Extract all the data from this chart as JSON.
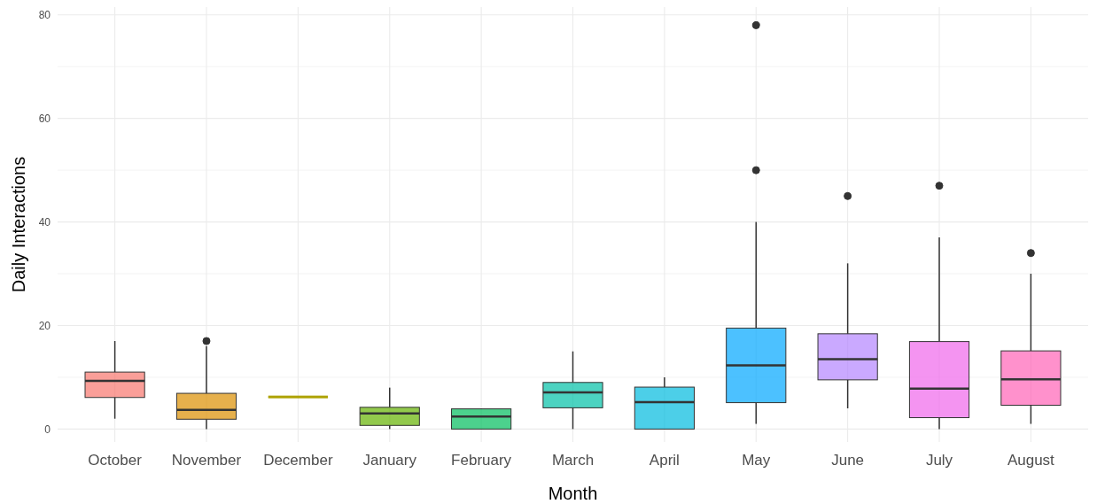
{
  "chart_data": {
    "type": "box",
    "xlabel": "Month",
    "ylabel": "Daily Interactions",
    "categories": [
      "October",
      "November",
      "December",
      "January",
      "February",
      "March",
      "April",
      "May",
      "June",
      "July",
      "August"
    ],
    "colors": [
      "#f8766d",
      "#db8e00",
      "#aea200",
      "#64b200",
      "#00bd5c",
      "#00c1a7",
      "#00bade",
      "#00a6ff",
      "#b385ff",
      "#ef67eb",
      "#ff63b6"
    ],
    "boxes": [
      {
        "low": 2,
        "q1": 6.1,
        "median": 9.3,
        "q3": 11,
        "high": 17
      },
      {
        "low": 0,
        "q1": 1.9,
        "median": 3.7,
        "q3": 6.9,
        "high": 16,
        "outliers": [
          17
        ]
      },
      {
        "low": 6.2,
        "q1": 6.2,
        "median": 6.2,
        "q3": 6.2,
        "high": 6.2
      },
      {
        "low": 0,
        "q1": 0.7,
        "median": 3,
        "q3": 4.2,
        "high": 8
      },
      {
        "low": 0,
        "q1": 0,
        "median": 2.4,
        "q3": 3.9,
        "high": 4
      },
      {
        "low": 0,
        "q1": 4.1,
        "median": 7.1,
        "q3": 9,
        "high": 15
      },
      {
        "low": 0,
        "q1": 0,
        "median": 5.2,
        "q3": 8.1,
        "high": 10
      },
      {
        "low": 1,
        "q1": 5.1,
        "median": 12.3,
        "q3": 19.5,
        "high": 40,
        "outliers": [
          50,
          78
        ]
      },
      {
        "low": 4,
        "q1": 9.5,
        "median": 13.5,
        "q3": 18.4,
        "high": 32,
        "outliers": [
          45
        ]
      },
      {
        "low": 0,
        "q1": 2.2,
        "median": 7.8,
        "q3": 16.9,
        "high": 37,
        "outliers": [
          47
        ]
      },
      {
        "low": 1,
        "q1": 4.6,
        "median": 9.6,
        "q3": 15.1,
        "high": 30,
        "outliers": [
          34
        ]
      }
    ],
    "ylim": [
      -2.5,
      81.5
    ],
    "yticks": [
      0,
      {
        "value": 10,
        "label": null
      },
      20,
      {
        "value": 30,
        "label": null
      },
      40,
      {
        "value": 50,
        "label": null
      },
      60,
      {
        "value": 70,
        "label": null
      },
      80
    ],
    "grid": true
  }
}
